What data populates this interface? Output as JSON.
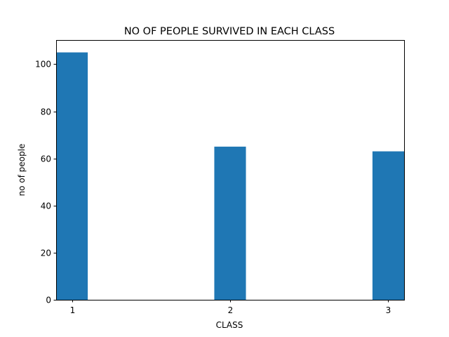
{
  "chart_data": {
    "type": "bar",
    "title": "NO OF PEOPLE SURVIVED IN EACH CLASS",
    "xlabel": "CLASS",
    "ylabel": "no of people",
    "categories": [
      1,
      2,
      3
    ],
    "values": [
      105,
      65,
      63
    ],
    "x_tick_labels": [
      "1",
      "2",
      "3"
    ],
    "y_ticks": [
      0,
      20,
      40,
      60,
      80,
      100
    ],
    "y_tick_labels": [
      "0",
      "20",
      "40",
      "60",
      "80",
      "100"
    ],
    "xlim": [
      0.9,
      3.1
    ],
    "ylim": [
      0,
      110.25
    ],
    "bar_width": 0.2,
    "bar_color": "#1f77b4",
    "grid": false,
    "legend": "none"
  }
}
